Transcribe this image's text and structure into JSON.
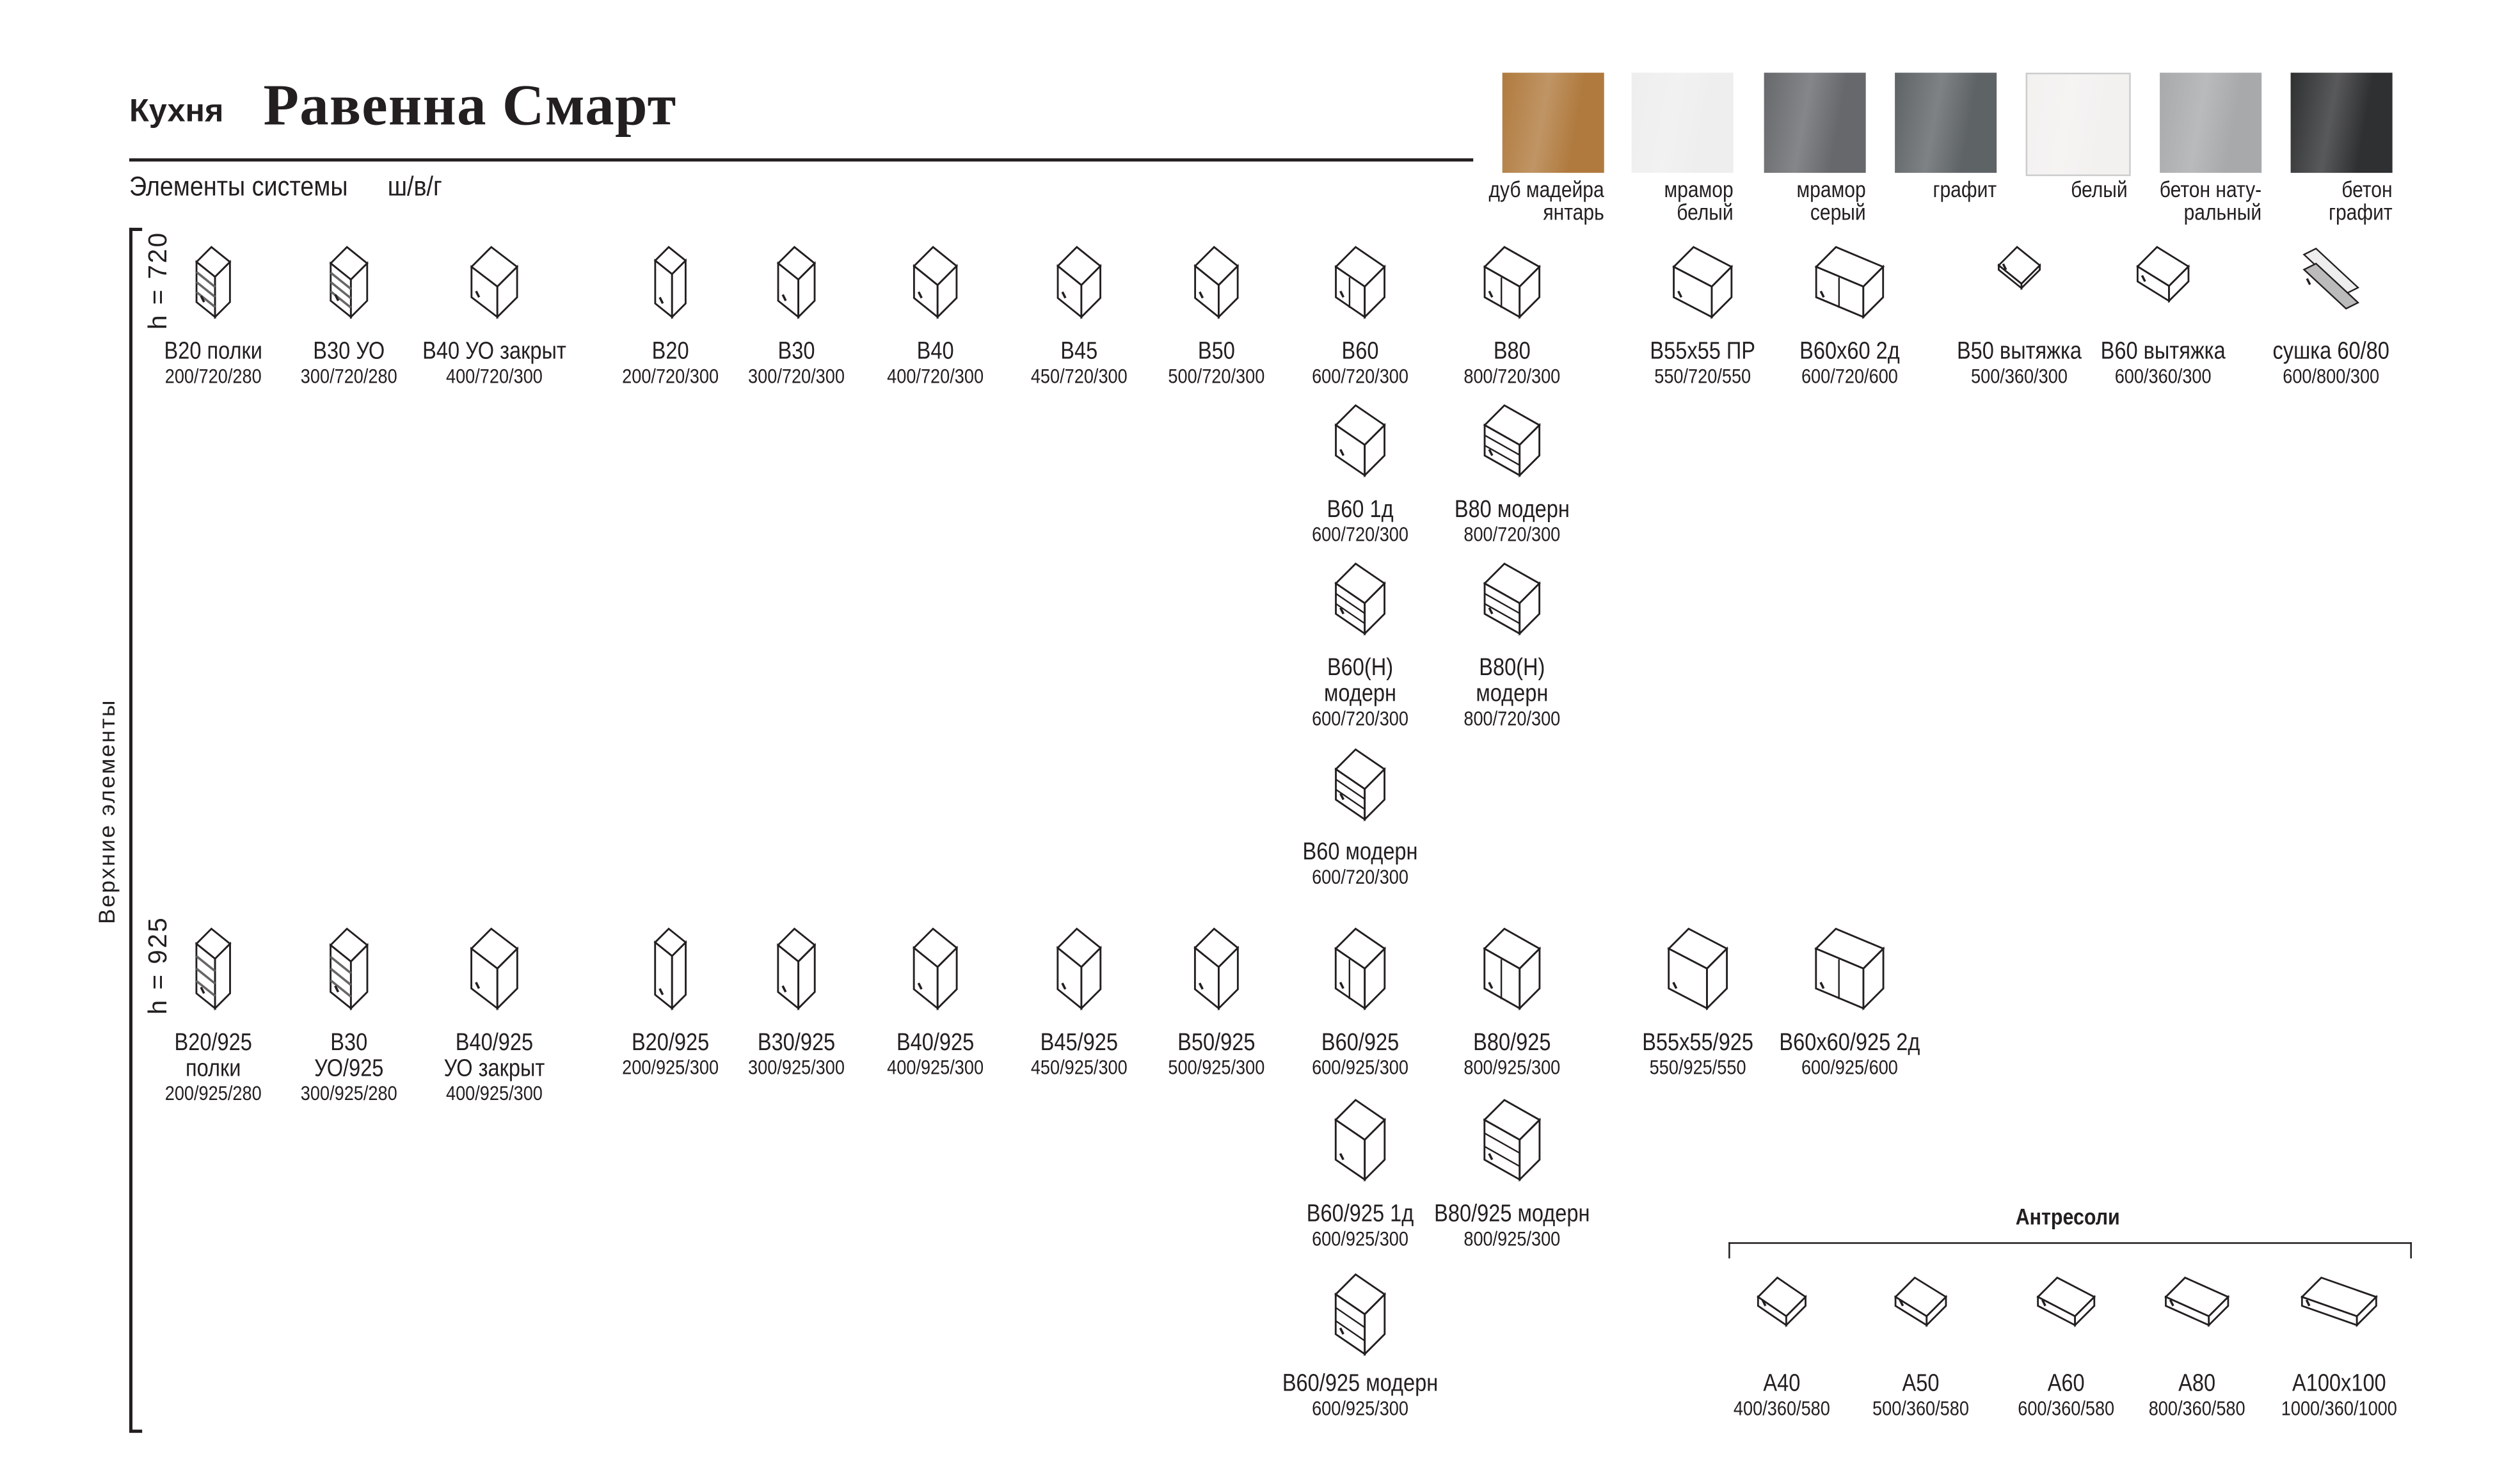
{
  "header": {
    "prefix": "Кухня",
    "title": "Равенна Смарт",
    "subtitle": "Элементы системы",
    "dims_legend": "ш/в/г"
  },
  "swatches": [
    {
      "label": [
        "дуб мадейра",
        "янтарь"
      ],
      "color": "#b07a3e"
    },
    {
      "label": [
        "мрамор",
        "белый"
      ],
      "color": "#eeeeef"
    },
    {
      "label": [
        "мрамор",
        "серый"
      ],
      "color": "#66686b"
    },
    {
      "label": [
        "графит",
        ""
      ],
      "color": "#5e6366"
    },
    {
      "label": [
        "белый",
        ""
      ],
      "color": "#f3f1f0"
    },
    {
      "label": [
        "бетон нату-",
        "ральный"
      ],
      "color": "#a7a9ab"
    },
    {
      "label": [
        "бетон",
        "графит"
      ],
      "color": "#2f3031"
    }
  ],
  "section_label": "Верхние элементы",
  "row_labels": [
    "h = 720",
    "h = 925"
  ],
  "antresoli_title": "Антресоли",
  "items": [
    {
      "label": [
        "В20 полки"
      ],
      "dims": "200/720/280",
      "icon": "shelf-cabinet-icon"
    },
    {
      "label": [
        "В30 УО"
      ],
      "dims": "300/720/280",
      "icon": "corner-shelf-icon"
    },
    {
      "label": [
        "В40 УО закрыт"
      ],
      "dims": "400/720/300",
      "icon": "cabinet-icon"
    },
    {
      "label": [
        "В20"
      ],
      "dims": "200/720/300",
      "icon": "cabinet-icon"
    },
    {
      "label": [
        "В30"
      ],
      "dims": "300/720/300",
      "icon": "cabinet-icon"
    },
    {
      "label": [
        "В40"
      ],
      "dims": "400/720/300",
      "icon": "cabinet-icon"
    },
    {
      "label": [
        "В45"
      ],
      "dims": "450/720/300",
      "icon": "cabinet-icon"
    },
    {
      "label": [
        "В50"
      ],
      "dims": "500/720/300",
      "icon": "cabinet-icon"
    },
    {
      "label": [
        "В60"
      ],
      "dims": "600/720/300",
      "icon": "double-door-cabinet-icon"
    },
    {
      "label": [
        "В80"
      ],
      "dims": "800/720/300",
      "icon": "double-door-cabinet-icon"
    },
    {
      "label": [
        "В55х55 ПР"
      ],
      "dims": "550/720/550",
      "icon": "corner-cabinet-icon"
    },
    {
      "label": [
        "В60х60 2д"
      ],
      "dims": "600/720/600",
      "icon": "l-corner-cabinet-icon"
    },
    {
      "label": [
        "В50 вытяжка"
      ],
      "dims": "500/360/300",
      "icon": "hood-cabinet-icon"
    },
    {
      "label": [
        "В60 вытяжка"
      ],
      "dims": "600/360/300",
      "icon": "hood-cabinet-icon"
    },
    {
      "label": [
        "сушка 60/80"
      ],
      "dims": "600/800/300",
      "icon": "dish-dryer-icon"
    },
    {
      "label": [
        "В60 1д"
      ],
      "dims": "600/720/300",
      "icon": "cabinet-icon"
    },
    {
      "label": [
        "В80 модерн"
      ],
      "dims": "800/720/300",
      "icon": "drawer-cabinet-icon"
    },
    {
      "label": [
        "В60(Н)",
        "модерн"
      ],
      "dims": "600/720/300",
      "icon": "drawer-cabinet-icon"
    },
    {
      "label": [
        "В80(Н)",
        " модерн"
      ],
      "dims": "800/720/300",
      "icon": "drawer-cabinet-icon"
    },
    {
      "label": [
        "В60 модерн"
      ],
      "dims": "600/720/300",
      "icon": "drawer-cabinet-icon"
    },
    {
      "label": [
        "В20/925",
        "полки"
      ],
      "dims": "200/925/280",
      "icon": "shelf-cabinet-icon"
    },
    {
      "label": [
        "В30",
        "УО/925"
      ],
      "dims": "300/925/280",
      "icon": "corner-shelf-icon"
    },
    {
      "label": [
        "В40/925",
        "УО закрыт"
      ],
      "dims": "400/925/300",
      "icon": "cabinet-icon"
    },
    {
      "label": [
        "В20/925"
      ],
      "dims": "200/925/300",
      "icon": "cabinet-icon"
    },
    {
      "label": [
        "В30/925"
      ],
      "dims": "300/925/300",
      "icon": "cabinet-icon"
    },
    {
      "label": [
        "В40/925"
      ],
      "dims": "400/925/300",
      "icon": "cabinet-icon"
    },
    {
      "label": [
        "В45/925"
      ],
      "dims": "450/925/300",
      "icon": "cabinet-icon"
    },
    {
      "label": [
        "В50/925"
      ],
      "dims": "500/925/300",
      "icon": "cabinet-icon"
    },
    {
      "label": [
        "В60/925"
      ],
      "dims": "600/925/300",
      "icon": "double-door-cabinet-icon"
    },
    {
      "label": [
        "В80/925"
      ],
      "dims": "800/925/300",
      "icon": "double-door-cabinet-icon"
    },
    {
      "label": [
        "В55х55/925"
      ],
      "dims": "550/925/550",
      "icon": "corner-cabinet-icon"
    },
    {
      "label": [
        "В60х60/925 2д"
      ],
      "dims": "600/925/600",
      "icon": "l-corner-cabinet-icon"
    },
    {
      "label": [
        "В60/925 1д"
      ],
      "dims": "600/925/300",
      "icon": "cabinet-icon"
    },
    {
      "label": [
        "В80/925 модерн"
      ],
      "dims": "800/925/300",
      "icon": "drawer-cabinet-icon"
    },
    {
      "label": [
        "В60/925 модерн"
      ],
      "dims": "600/925/300",
      "icon": "drawer-cabinet-icon"
    },
    {
      "label": [
        "А40"
      ],
      "dims": "400/360/580",
      "icon": "mezzanine-icon"
    },
    {
      "label": [
        "А50"
      ],
      "dims": "500/360/580",
      "icon": "mezzanine-icon"
    },
    {
      "label": [
        "А60"
      ],
      "dims": "600/360/580",
      "icon": "mezzanine-icon"
    },
    {
      "label": [
        "А80"
      ],
      "dims": "800/360/580",
      "icon": "mezzanine-icon"
    },
    {
      "label": [
        "А100х100"
      ],
      "dims": "1000/360/1000",
      "icon": "corner-mezzanine-icon"
    }
  ]
}
